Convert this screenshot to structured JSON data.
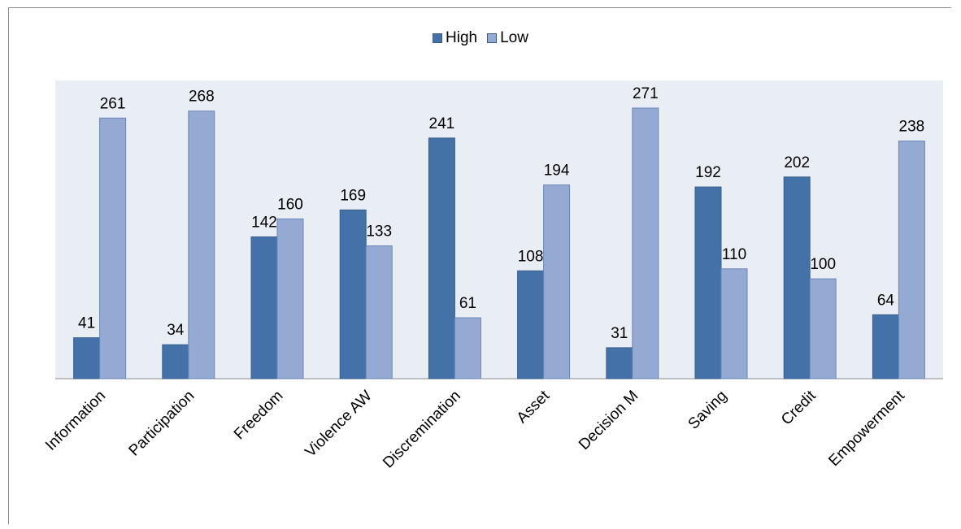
{
  "chart_data": {
    "type": "bar",
    "title": "",
    "xlabel": "",
    "ylabel": "",
    "ylim": [
      0,
      300
    ],
    "grid": false,
    "legend_position": "top",
    "categories": [
      "Information",
      "Participation",
      "Freedom",
      "Violence AW",
      "Discremination",
      "Asset",
      "Decision M",
      "Saving",
      "Credit",
      "Empowerment"
    ],
    "series": [
      {
        "name": "High",
        "color": "#4472a8",
        "values": [
          41,
          34,
          142,
          169,
          241,
          108,
          31,
          192,
          202,
          64
        ]
      },
      {
        "name": "Low",
        "color": "#95aad3",
        "values": [
          261,
          268,
          160,
          133,
          61,
          194,
          271,
          110,
          100,
          238
        ]
      }
    ],
    "plot_background": "#e9edf4"
  }
}
